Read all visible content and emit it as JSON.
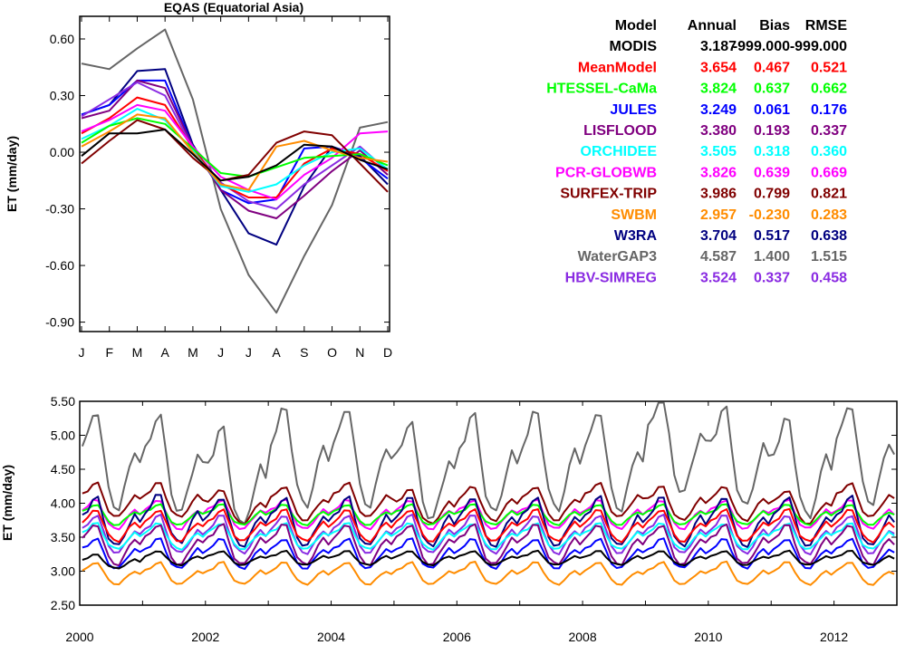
{
  "chart_data": [
    {
      "type": "line",
      "title": "EQAS (Equatorial Asia)",
      "ylabel": "ET (mm/day)",
      "xlabel": "",
      "categories": [
        "J",
        "F",
        "M",
        "A",
        "M",
        "J",
        "J",
        "A",
        "S",
        "O",
        "N",
        "D"
      ],
      "ylim": [
        -0.95,
        0.72
      ],
      "yticks": [
        "0.60",
        "0.30",
        "0.00",
        "-0.30",
        "-0.60",
        "-0.90"
      ],
      "ytick_values": [
        0.6,
        0.3,
        0.0,
        -0.3,
        -0.6,
        -0.9
      ],
      "grid": false,
      "series": [
        {
          "name": "WaterGAP3",
          "color": "#666666",
          "values": [
            0.47,
            0.44,
            0.55,
            0.65,
            0.28,
            -0.3,
            -0.65,
            -0.85,
            -0.55,
            -0.28,
            0.13,
            0.16
          ]
        },
        {
          "name": "W3RA",
          "color": "#000080",
          "values": [
            0.2,
            0.25,
            0.43,
            0.44,
            0.04,
            -0.2,
            -0.43,
            -0.49,
            -0.18,
            0.03,
            -0.02,
            -0.17
          ]
        },
        {
          "name": "JULES",
          "color": "#0000ff",
          "values": [
            0.2,
            0.25,
            0.38,
            0.38,
            0.03,
            -0.2,
            -0.27,
            -0.25,
            0.02,
            0.03,
            -0.03,
            -0.14
          ]
        },
        {
          "name": "LISFLOOD",
          "color": "#800080",
          "values": [
            0.18,
            0.22,
            0.38,
            0.34,
            0.03,
            -0.2,
            -0.31,
            -0.35,
            -0.23,
            -0.1,
            0.01,
            -0.12
          ]
        },
        {
          "name": "HBV-SIMREG",
          "color": "#8a2be2",
          "values": [
            0.19,
            0.28,
            0.37,
            0.3,
            0.02,
            -0.16,
            -0.26,
            -0.3,
            -0.17,
            -0.07,
            0.03,
            -0.1
          ]
        },
        {
          "name": "MeanModel",
          "color": "#ff0000",
          "values": [
            0.1,
            0.18,
            0.29,
            0.25,
            0.02,
            -0.17,
            -0.24,
            -0.24,
            -0.06,
            0.02,
            -0.01,
            -0.1
          ]
        },
        {
          "name": "PCR-GLOBWB",
          "color": "#ff00ff",
          "values": [
            0.11,
            0.17,
            0.25,
            0.22,
            0.03,
            -0.13,
            -0.2,
            -0.25,
            -0.12,
            -0.03,
            0.1,
            0.11
          ]
        },
        {
          "name": "ORCHIDEE",
          "color": "#00ffff",
          "values": [
            0.07,
            0.14,
            0.23,
            0.17,
            0.01,
            -0.18,
            -0.21,
            -0.17,
            -0.07,
            0.0,
            0.02,
            -0.09
          ]
        },
        {
          "name": "HTESSEL-CaMa",
          "color": "#00ff00",
          "values": [
            0.05,
            0.14,
            0.18,
            0.15,
            0.02,
            -0.11,
            -0.13,
            -0.08,
            -0.03,
            -0.02,
            -0.01,
            -0.07
          ]
        },
        {
          "name": "SURFEX-TRIP",
          "color": "#800000",
          "values": [
            -0.06,
            0.06,
            0.17,
            0.12,
            -0.03,
            -0.15,
            -0.12,
            0.05,
            0.11,
            0.09,
            -0.06,
            -0.21
          ]
        },
        {
          "name": "SWBM",
          "color": "#ff8c00",
          "values": [
            0.03,
            0.11,
            0.2,
            0.18,
            0.0,
            -0.17,
            -0.2,
            0.03,
            0.06,
            0.01,
            -0.03,
            -0.05
          ]
        },
        {
          "name": "MODIS",
          "color": "#000000",
          "values": [
            -0.02,
            0.1,
            0.1,
            0.12,
            -0.01,
            -0.15,
            -0.13,
            -0.07,
            0.04,
            0.03,
            -0.04,
            -0.09
          ]
        }
      ]
    },
    {
      "type": "line",
      "title": "",
      "ylabel": "ET (mm/day)",
      "xlabel": "",
      "x_start_year": 2000,
      "x_end_year": 2013,
      "xticks": [
        "2000",
        "2002",
        "2004",
        "2006",
        "2008",
        "2010",
        "2012"
      ],
      "xtick_values": [
        2000,
        2002,
        2004,
        2006,
        2008,
        2010,
        2012
      ],
      "ylim": [
        2.5,
        5.5
      ],
      "yticks": [
        "5.50",
        "5.00",
        "4.50",
        "4.00",
        "3.50",
        "3.00",
        "2.50"
      ],
      "ytick_values": [
        5.5,
        5.0,
        4.5,
        4.0,
        3.5,
        3.0,
        2.5
      ],
      "grid": false,
      "series": [
        {
          "name": "WaterGAP3",
          "color": "#666666",
          "mean": 4.587,
          "amplitude": 0.72,
          "yearly_shift": [
            0.0,
            -0.05,
            -0.25,
            0.05,
            0.05,
            -0.15,
            -0.05,
            0.0,
            0.0,
            0.25,
            0.05,
            -0.1,
            0.1
          ]
        },
        {
          "name": "SURFEX-TRIP",
          "color": "#800000",
          "mean": 3.986,
          "amplitude": 0.25,
          "yearly_shift": [
            0.05,
            0.05,
            -0.05,
            0.0,
            0.05,
            -0.05,
            0.0,
            0.0,
            0.05,
            0.0,
            0.0,
            -0.05,
            0.05
          ]
        },
        {
          "name": "PCR-GLOBWB",
          "color": "#ff00ff",
          "mean": 3.826,
          "amplitude": 0.22,
          "yearly_shift": [
            0.0,
            0.0,
            0.0,
            0.0,
            0.0,
            0.0,
            0.0,
            0.0,
            0.0,
            0.0,
            0.0,
            0.0,
            0.0
          ]
        },
        {
          "name": "HTESSEL-CaMa",
          "color": "#00ff00",
          "mean": 3.824,
          "amplitude": 0.16,
          "yearly_shift": [
            0.0,
            0.0,
            0.0,
            0.0,
            0.0,
            0.0,
            0.0,
            0.0,
            0.0,
            0.0,
            0.0,
            0.0,
            0.0
          ]
        },
        {
          "name": "W3RA",
          "color": "#000080",
          "mean": 3.704,
          "amplitude": 0.38,
          "yearly_shift": [
            0.0,
            0.05,
            0.0,
            0.0,
            0.0,
            0.0,
            0.0,
            0.0,
            0.0,
            0.0,
            0.0,
            0.0,
            0.0
          ]
        },
        {
          "name": "MeanModel",
          "color": "#ff0000",
          "mean": 3.654,
          "amplitude": 0.24,
          "yearly_shift": [
            0.0,
            0.0,
            0.0,
            0.0,
            0.0,
            0.0,
            0.0,
            0.0,
            0.0,
            0.0,
            0.0,
            0.0,
            0.0
          ]
        },
        {
          "name": "HBV-SIMREG",
          "color": "#8a2be2",
          "mean": 3.524,
          "amplitude": 0.28,
          "yearly_shift": [
            0.0,
            0.0,
            0.0,
            0.0,
            0.0,
            0.0,
            0.0,
            0.0,
            0.0,
            0.0,
            0.0,
            0.0,
            0.0
          ]
        },
        {
          "name": "ORCHIDEE",
          "color": "#00ffff",
          "mean": 3.505,
          "amplitude": 0.19,
          "yearly_shift": [
            0.0,
            0.0,
            0.0,
            0.0,
            0.0,
            0.0,
            0.0,
            0.0,
            0.0,
            0.0,
            0.0,
            0.0,
            0.0
          ]
        },
        {
          "name": "LISFLOOD",
          "color": "#800080",
          "mean": 3.38,
          "amplitude": 0.3,
          "yearly_shift": [
            0.0,
            0.0,
            0.0,
            0.0,
            0.0,
            0.0,
            0.0,
            0.0,
            0.0,
            0.0,
            0.0,
            0.0,
            0.0
          ]
        },
        {
          "name": "JULES",
          "color": "#0000ff",
          "mean": 3.249,
          "amplitude": 0.23,
          "yearly_shift": [
            0.0,
            0.0,
            0.0,
            0.0,
            0.0,
            0.0,
            0.0,
            0.0,
            0.0,
            0.0,
            0.0,
            0.0,
            0.0
          ]
        },
        {
          "name": "MODIS",
          "color": "#000000",
          "mean": 3.187,
          "amplitude": 0.11,
          "yearly_shift": [
            -0.05,
            0.0,
            0.0,
            0.0,
            0.0,
            0.0,
            0.0,
            0.0,
            0.0,
            0.0,
            0.0,
            0.0,
            0.0
          ]
        },
        {
          "name": "SWBM",
          "color": "#ff8c00",
          "mean": 2.957,
          "amplitude": 0.17,
          "yearly_shift": [
            0.0,
            0.0,
            0.0,
            0.0,
            0.0,
            0.0,
            0.0,
            0.0,
            0.0,
            0.0,
            0.0,
            0.0,
            0.0
          ]
        }
      ]
    }
  ],
  "stats_table": {
    "headers": [
      "Model",
      "Annual",
      "Bias",
      "RMSE"
    ],
    "rows": [
      {
        "name": "MODIS",
        "annual": "3.187",
        "bias": "-999.000",
        "rmse": "-999.000",
        "color": "#000000"
      },
      {
        "name": "MeanModel",
        "annual": "3.654",
        "bias": "0.467",
        "rmse": "0.521",
        "color": "#ff0000"
      },
      {
        "name": "HTESSEL-CaMa",
        "annual": "3.824",
        "bias": "0.637",
        "rmse": "0.662",
        "color": "#00ff00"
      },
      {
        "name": "JULES",
        "annual": "3.249",
        "bias": "0.061",
        "rmse": "0.176",
        "color": "#0000ff"
      },
      {
        "name": "LISFLOOD",
        "annual": "3.380",
        "bias": "0.193",
        "rmse": "0.337",
        "color": "#800080"
      },
      {
        "name": "ORCHIDEE",
        "annual": "3.505",
        "bias": "0.318",
        "rmse": "0.360",
        "color": "#00ffff"
      },
      {
        "name": "PCR-GLOBWB",
        "annual": "3.826",
        "bias": "0.639",
        "rmse": "0.669",
        "color": "#ff00ff"
      },
      {
        "name": "SURFEX-TRIP",
        "annual": "3.986",
        "bias": "0.799",
        "rmse": "0.821",
        "color": "#800000"
      },
      {
        "name": "SWBM",
        "annual": "2.957",
        "bias": "-0.230",
        "rmse": "0.283",
        "color": "#ff8c00"
      },
      {
        "name": "W3RA",
        "annual": "3.704",
        "bias": "0.517",
        "rmse": "0.638",
        "color": "#000080"
      },
      {
        "name": "WaterGAP3",
        "annual": "4.587",
        "bias": "1.400",
        "rmse": "1.515",
        "color": "#666666"
      },
      {
        "name": "HBV-SIMREG",
        "annual": "3.524",
        "bias": "0.337",
        "rmse": "0.458",
        "color": "#8a2be2"
      }
    ]
  }
}
